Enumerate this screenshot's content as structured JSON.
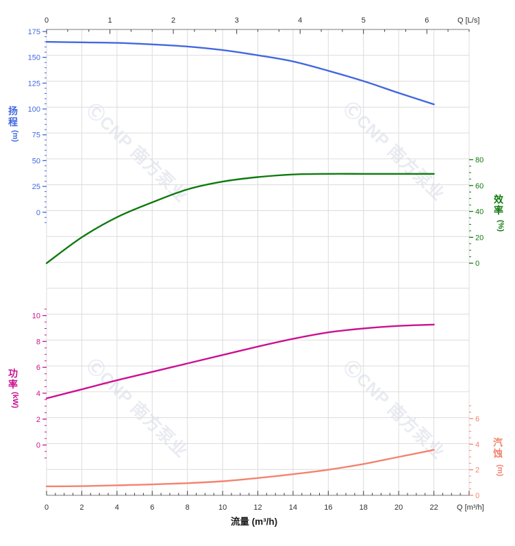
{
  "chart_data": {
    "type": "line",
    "title": "",
    "x": [
      0,
      2,
      4,
      6,
      8,
      10,
      12,
      14,
      16,
      18,
      20,
      22
    ],
    "x_axis": {
      "label": "流量 (m³/h)",
      "end_label": "Q [m³/h]",
      "range": [
        0,
        24
      ],
      "tick_labels": [
        0,
        2,
        4,
        6,
        8,
        10,
        12,
        14,
        16,
        18,
        20,
        22
      ],
      "minor_step": 0.5,
      "color": "#2e2e2e"
    },
    "top_axis": {
      "end_label": "Q [L/s]",
      "range": [
        0,
        6.667
      ],
      "tick_labels": [
        0,
        1,
        2,
        3,
        4,
        5,
        6
      ],
      "minor_step": 0.3333,
      "color": "#2e2e2e"
    },
    "series": [
      {
        "id": "head",
        "name": "扬程",
        "unit": "(m)",
        "color": "#4268E0",
        "axis_side": "left",
        "panel": "top",
        "axis_range": [
          0,
          175
        ],
        "axis_ticks": [
          175,
          150,
          125,
          100,
          75,
          50,
          25,
          0
        ],
        "minor_step": 5,
        "values": [
          165,
          164.5,
          164,
          162.5,
          160.5,
          157,
          152,
          146,
          137,
          127,
          115.5,
          104.5
        ]
      },
      {
        "id": "efficiency",
        "name": "效率",
        "unit": "(%)",
        "color": "#0E7A0E",
        "axis_side": "right",
        "panel": "top",
        "axis_range": [
          0,
          80
        ],
        "axis_ticks": [
          80,
          60,
          40,
          20,
          0
        ],
        "minor_step": 5,
        "values": [
          0,
          20,
          35.5,
          47,
          57,
          63,
          66.5,
          68.5,
          69,
          69,
          69,
          69
        ]
      },
      {
        "id": "power",
        "name": "功率",
        "unit": "(kW)",
        "color": "#CB1090",
        "axis_side": "left",
        "panel": "bottom",
        "axis_range": [
          0,
          10
        ],
        "axis_ticks": [
          10,
          8,
          6,
          4,
          2,
          0
        ],
        "minor_step": 0.5,
        "values": [
          3.6,
          4.3,
          5.0,
          5.65,
          6.3,
          6.95,
          7.6,
          8.2,
          8.7,
          9.0,
          9.2,
          9.3
        ]
      },
      {
        "id": "npsh",
        "name": "汽蚀",
        "unit": "(m)",
        "color": "#F4826E",
        "axis_side": "right",
        "panel": "bottom",
        "axis_range": [
          0,
          6
        ],
        "axis_ticks": [
          6,
          4,
          2,
          0
        ],
        "minor_step": 0.5,
        "values": [
          0.7,
          0.72,
          0.78,
          0.85,
          0.95,
          1.1,
          1.35,
          1.65,
          2.0,
          2.45,
          3.0,
          3.55
        ]
      }
    ],
    "grid": {
      "on": true,
      "color": "#DCDCDC"
    },
    "axis_line_color": "#7a7a7a",
    "tick_color": "#3a3a3a",
    "watermark": {
      "text": "ⒸCNP 南方泵业",
      "color": "#E9EBF2",
      "count": 4
    }
  }
}
